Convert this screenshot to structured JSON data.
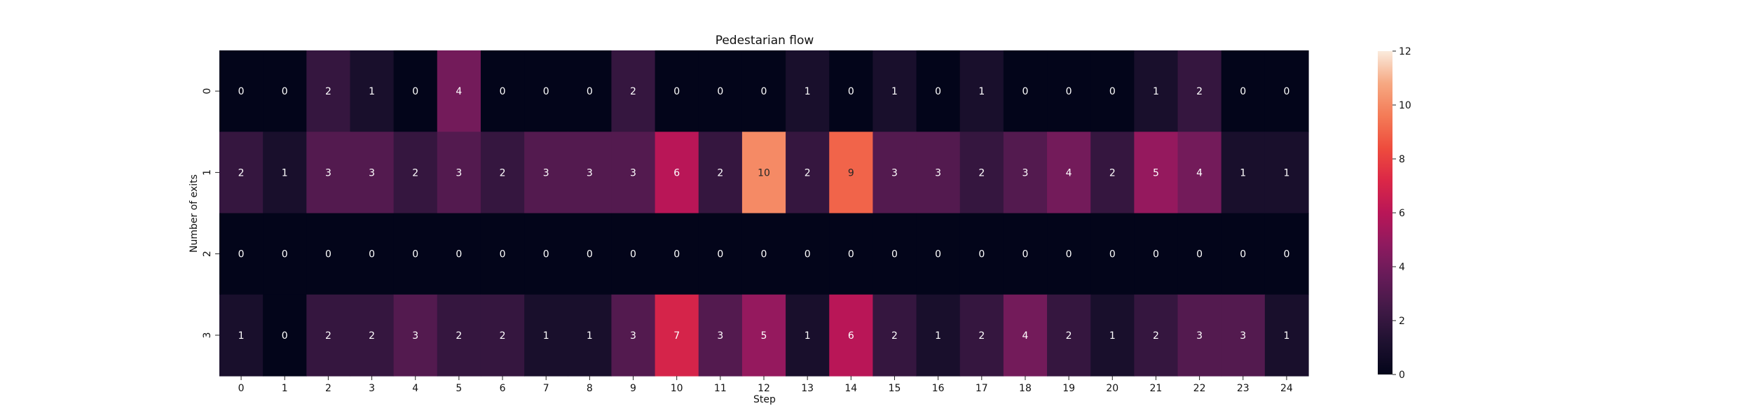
{
  "chart_data": {
    "type": "heatmap",
    "title": "Pedestarian flow",
    "xlabel": "Step",
    "ylabel": "Number of exits",
    "x_categories": [
      "0",
      "1",
      "2",
      "3",
      "4",
      "5",
      "6",
      "7",
      "8",
      "9",
      "10",
      "11",
      "12",
      "13",
      "14",
      "15",
      "16",
      "17",
      "18",
      "19",
      "20",
      "21",
      "22",
      "23",
      "24"
    ],
    "y_categories": [
      "0",
      "1",
      "2",
      "3"
    ],
    "values": [
      [
        0,
        0,
        2,
        1,
        0,
        4,
        0,
        0,
        0,
        2,
        0,
        0,
        0,
        1,
        0,
        1,
        0,
        1,
        0,
        0,
        0,
        1,
        2,
        0,
        0
      ],
      [
        2,
        1,
        3,
        3,
        2,
        3,
        2,
        3,
        3,
        3,
        6,
        2,
        10,
        2,
        9,
        3,
        3,
        2,
        3,
        4,
        2,
        5,
        4,
        1,
        1
      ],
      [
        0,
        0,
        0,
        0,
        0,
        0,
        0,
        0,
        0,
        0,
        0,
        0,
        0,
        0,
        0,
        0,
        0,
        0,
        0,
        0,
        0,
        0,
        0,
        0,
        0
      ],
      [
        1,
        0,
        2,
        2,
        3,
        2,
        2,
        1,
        1,
        3,
        7,
        3,
        5,
        1,
        6,
        2,
        1,
        2,
        4,
        2,
        1,
        2,
        3,
        3,
        1
      ]
    ],
    "colorbar": {
      "range": [
        0,
        12
      ],
      "ticks": [
        0,
        2,
        4,
        6,
        8,
        10,
        12
      ],
      "colormap": "rocket"
    }
  }
}
